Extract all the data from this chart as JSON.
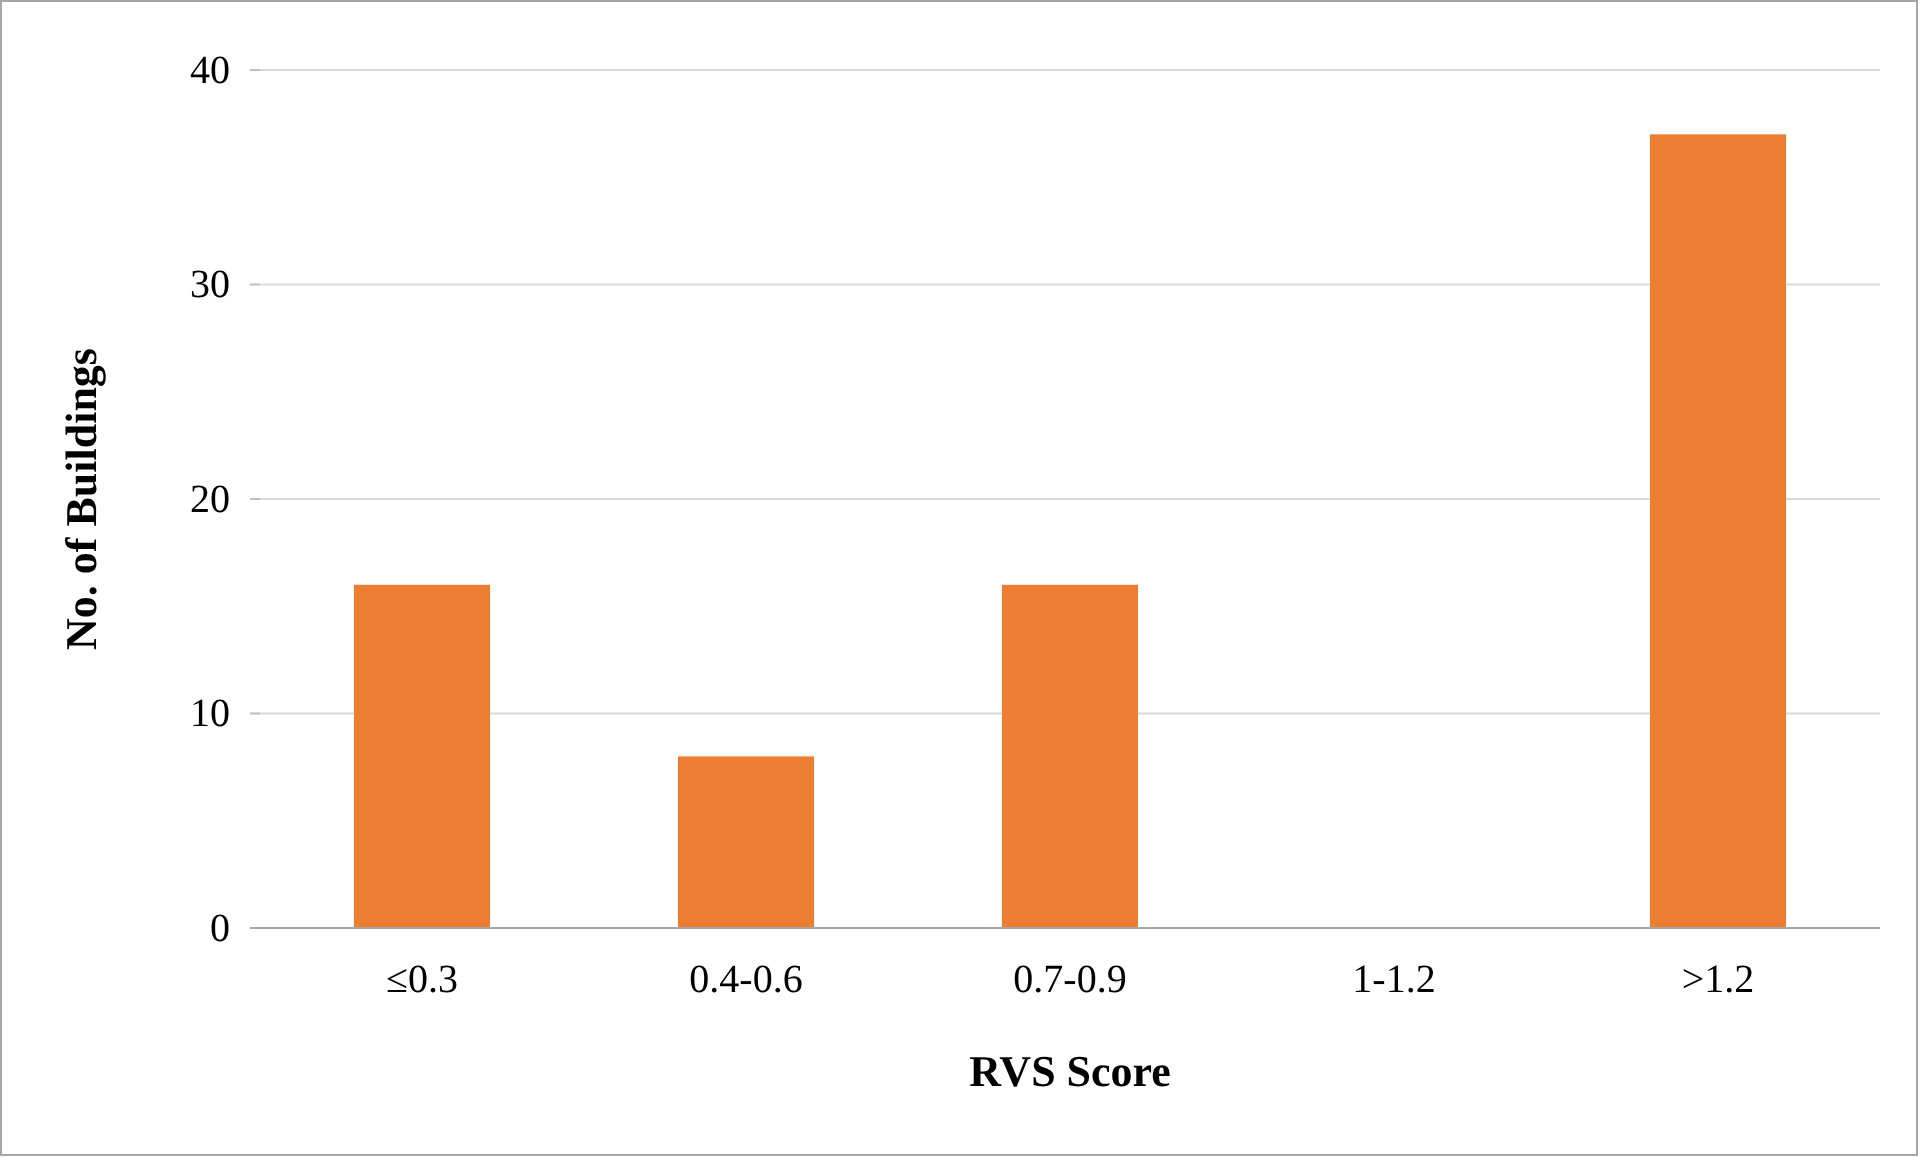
{
  "chart_data": {
    "type": "bar",
    "xlabel": "RVS Score",
    "ylabel": "No. of Buildings",
    "categories": [
      "≤0.3",
      "0.4-0.6",
      "0.7-0.9",
      "1-1.2",
      ">1.2"
    ],
    "values": [
      16,
      8,
      16,
      0,
      37
    ],
    "color": "#ed7d31",
    "ylim": [
      0,
      40
    ],
    "yticks": [
      0,
      10,
      20,
      30,
      40
    ],
    "grid": "y"
  }
}
